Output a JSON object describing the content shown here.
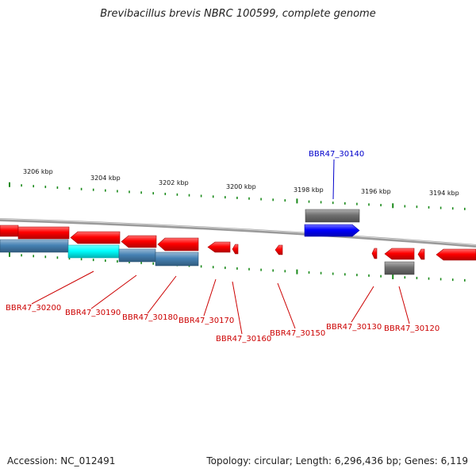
{
  "title": "Brevibacillus brevis NBRC 100599, complete genome",
  "footer": {
    "accession": "Accession: NC_012491",
    "topology": "Topology: circular; Length: 6,296,436 bp; Genes: 6,119"
  },
  "colors": {
    "forward_cds": "#ff0000",
    "reverse_cds": "#4682b4",
    "highlight_cds": "#00ffff",
    "selected_gene": "#0000ff",
    "other_feature": "#707070",
    "backbone": "#9a9a9a",
    "tick": "#1a8a1a",
    "label_red": "#cc0000",
    "label_blue": "#0000cc"
  },
  "kbp_labels": [
    "3206 kbp",
    "3204 kbp",
    "3202 kbp",
    "3200 kbp",
    "3198 kbp",
    "3196 kbp",
    "3194 kbp"
  ],
  "gene_labels": [
    {
      "id": "BBR47_30200",
      "color": "red"
    },
    {
      "id": "BBR47_30190",
      "color": "red"
    },
    {
      "id": "BBR47_30180",
      "color": "red"
    },
    {
      "id": "BBR47_30170",
      "color": "red"
    },
    {
      "id": "BBR47_30160",
      "color": "red"
    },
    {
      "id": "BBR47_30150",
      "color": "red"
    },
    {
      "id": "BBR47_30140",
      "color": "blue"
    },
    {
      "id": "BBR47_30130",
      "color": "red"
    },
    {
      "id": "BBR47_30120",
      "color": "red"
    }
  ]
}
